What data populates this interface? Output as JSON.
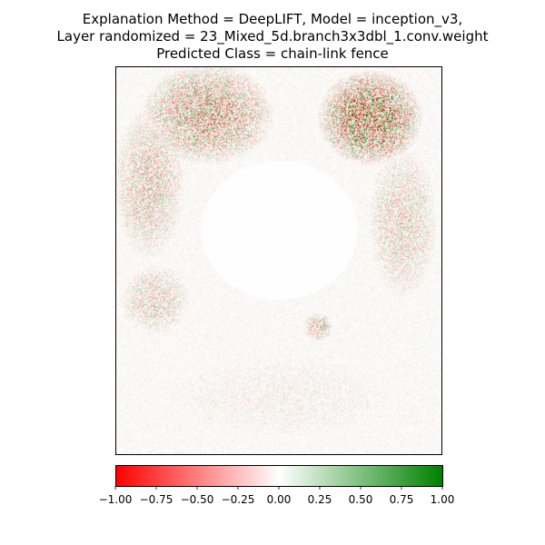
{
  "title": {
    "line1": "Explanation Method = DeepLIFT, Model = inception_v3,",
    "line2": "Layer randomized = 23_Mixed_5d.branch3x3dbl_1.conv.weight",
    "line3": "Predicted Class = chain-link fence"
  },
  "chart_data": {
    "type": "heatmap",
    "title": "Explanation Method = DeepLIFT, Model = inception_v3, Layer randomized = 23_Mixed_5d.branch3x3dbl_1.conv.weight Predicted Class = chain-link fence",
    "xlabel": "",
    "ylabel": "",
    "grid": false,
    "colormap": {
      "low": "#ff0000",
      "mid": "#ffffff",
      "high": "#008000"
    },
    "colorbar": {
      "range": [
        -1.0,
        1.0
      ],
      "ticks": [
        -1.0,
        -0.75,
        -0.5,
        -0.25,
        0.0,
        0.25,
        0.5,
        0.75,
        1.0
      ],
      "tick_labels": [
        "−1.00",
        "−0.75",
        "−0.50",
        "−0.25",
        "0.00",
        "0.25",
        "0.50",
        "0.75",
        "1.00"
      ]
    }
  }
}
